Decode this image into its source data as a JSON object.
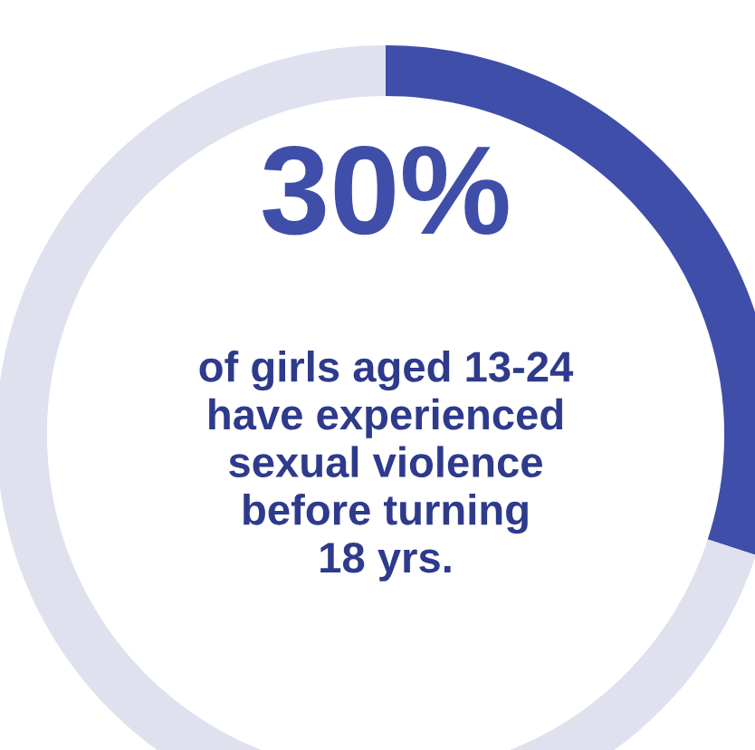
{
  "chart_data": {
    "type": "donut",
    "categories": [
      null,
      null
    ],
    "values": [
      30,
      70
    ],
    "colors": [
      "#3f4ea8",
      "#dfe1ef"
    ],
    "value_labels": [
      "30%",
      null
    ],
    "annotations": [
      "of girls aged 13-24\nhave experienced\nsexual violence\nbefore turning\n18 yrs."
    ]
  }
}
